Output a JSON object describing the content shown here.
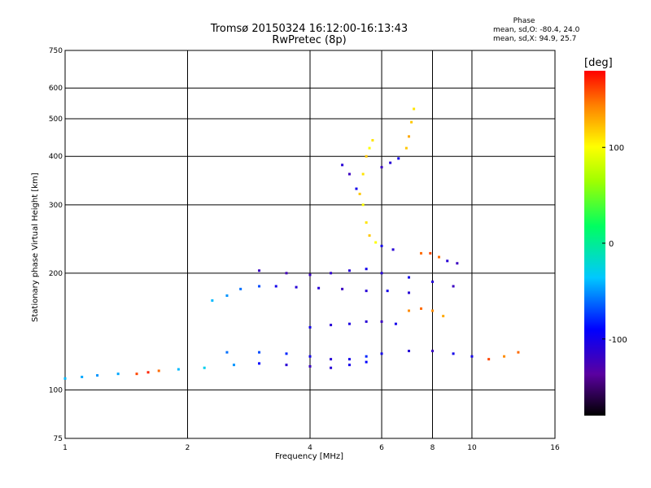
{
  "chart_data": {
    "type": "scatter",
    "title": "Tromsø 20150324 16:12:00-16:13:43",
    "subtitle": "RwPretec (8p)",
    "xlabel": "Frequency [MHz]",
    "ylabel": "Stationary phase Virtual Height [km]",
    "x_scale": "log",
    "y_scale": "log",
    "xlim": [
      1,
      16
    ],
    "ylim": [
      75,
      750
    ],
    "x_ticks": [
      1,
      2,
      4,
      6,
      8,
      10,
      16
    ],
    "x_tick_labels": [
      "1",
      "2",
      "4",
      "6",
      "8",
      "10",
      "16"
    ],
    "y_ticks": [
      75,
      100,
      200,
      300,
      400,
      500,
      600,
      750
    ],
    "y_tick_labels": [
      "75",
      "100",
      "200",
      "300",
      "400",
      "500",
      "600",
      "750"
    ],
    "grid": true,
    "colorbar": {
      "label": "[deg]",
      "range": [
        -180,
        180
      ],
      "ticks": [
        100,
        0,
        -100
      ],
      "tick_labels": [
        "100",
        "0",
        "-100"
      ]
    },
    "stats": {
      "title": "Phase",
      "o_mode": "mean, sd,O: -80.4, 24.0",
      "x_mode": "mean, sd,X:  94.9, 25.7"
    },
    "traces": [
      {
        "name": "",
        "points": [
          [
            1.0,
            107,
            -40
          ],
          [
            1.1,
            108,
            -45
          ],
          [
            1.2,
            109,
            -50
          ],
          [
            1.35,
            110,
            -45
          ],
          [
            1.5,
            110,
            160
          ],
          [
            1.6,
            111,
            170
          ],
          [
            1.7,
            112,
            150
          ],
          [
            1.9,
            113,
            -40
          ],
          [
            2.2,
            114,
            -30
          ],
          [
            2.6,
            116,
            -50
          ],
          [
            3.0,
            117,
            -90
          ],
          [
            3.5,
            116,
            -110
          ],
          [
            4.0,
            115,
            -120
          ],
          [
            4.5,
            114,
            -110
          ],
          [
            5.0,
            116,
            -100
          ],
          [
            5.5,
            118,
            -90
          ]
        ]
      },
      {
        "name": "",
        "points": [
          [
            2.5,
            125,
            -60
          ],
          [
            3.0,
            125,
            -70
          ],
          [
            3.5,
            124,
            -80
          ],
          [
            4.0,
            122,
            -100
          ],
          [
            4.5,
            120,
            -110
          ],
          [
            5.0,
            120,
            -100
          ],
          [
            5.5,
            122,
            -80
          ],
          [
            6.0,
            124,
            -100
          ],
          [
            7.0,
            126,
            -110
          ],
          [
            8.0,
            126,
            -120
          ],
          [
            9.0,
            124,
            -100
          ],
          [
            10.0,
            122,
            -100
          ],
          [
            11.0,
            120,
            160
          ],
          [
            12.0,
            122,
            140
          ],
          [
            13.0,
            125,
            150
          ]
        ]
      },
      {
        "name": "",
        "points": [
          [
            2.3,
            170,
            -40
          ],
          [
            2.5,
            175,
            -50
          ],
          [
            2.7,
            182,
            -60
          ],
          [
            3.0,
            185,
            -70
          ],
          [
            3.3,
            185,
            -100
          ],
          [
            3.7,
            184,
            -110
          ],
          [
            4.2,
            183,
            -110
          ],
          [
            4.8,
            182,
            -120
          ],
          [
            5.5,
            180,
            -110
          ],
          [
            6.2,
            180,
            -100
          ],
          [
            7.0,
            178,
            -110
          ]
        ]
      },
      {
        "name": "",
        "points": [
          [
            3.0,
            203,
            -120
          ],
          [
            3.5,
            200,
            -125
          ],
          [
            4.0,
            198,
            -120
          ],
          [
            4.5,
            200,
            -115
          ],
          [
            5.0,
            203,
            -110
          ],
          [
            5.5,
            205,
            -100
          ],
          [
            6.0,
            200,
            -110
          ],
          [
            7.0,
            195,
            -100
          ],
          [
            8.0,
            190,
            -110
          ],
          [
            9.0,
            185,
            -120
          ]
        ]
      },
      {
        "name": "",
        "points": [
          [
            4.0,
            145,
            -100
          ],
          [
            4.5,
            147,
            -110
          ],
          [
            5.0,
            148,
            -105
          ],
          [
            5.5,
            150,
            -110
          ],
          [
            6.0,
            150,
            -120
          ],
          [
            6.5,
            148,
            -100
          ],
          [
            7.0,
            160,
            140
          ],
          [
            7.5,
            162,
            150
          ],
          [
            8.0,
            160,
            140
          ],
          [
            8.5,
            155,
            130
          ]
        ]
      },
      {
        "name": "",
        "points": [
          [
            4.8,
            380,
            -110
          ],
          [
            5.0,
            360,
            -120
          ],
          [
            5.2,
            330,
            -100
          ],
          [
            5.4,
            300,
            100
          ],
          [
            5.5,
            270,
            110
          ],
          [
            5.6,
            250,
            120
          ],
          [
            5.8,
            240,
            100
          ],
          [
            6.0,
            235,
            -100
          ],
          [
            6.4,
            230,
            -110
          ]
        ]
      },
      {
        "name": "",
        "points": [
          [
            5.3,
            320,
            120
          ],
          [
            5.4,
            360,
            110
          ],
          [
            5.5,
            400,
            120
          ],
          [
            5.6,
            420,
            100
          ],
          [
            5.7,
            440,
            110
          ]
        ]
      },
      {
        "name": "",
        "points": [
          [
            6.0,
            375,
            -120
          ],
          [
            6.3,
            385,
            -110
          ],
          [
            6.6,
            395,
            -100
          ],
          [
            6.9,
            420,
            120
          ],
          [
            7.0,
            450,
            130
          ],
          [
            7.1,
            490,
            120
          ],
          [
            7.2,
            530,
            110
          ]
        ]
      },
      {
        "name": "",
        "points": [
          [
            7.5,
            225,
            150
          ],
          [
            7.9,
            225,
            160
          ],
          [
            8.3,
            220,
            150
          ],
          [
            8.7,
            215,
            -110
          ],
          [
            9.2,
            212,
            -120
          ]
        ]
      }
    ]
  }
}
